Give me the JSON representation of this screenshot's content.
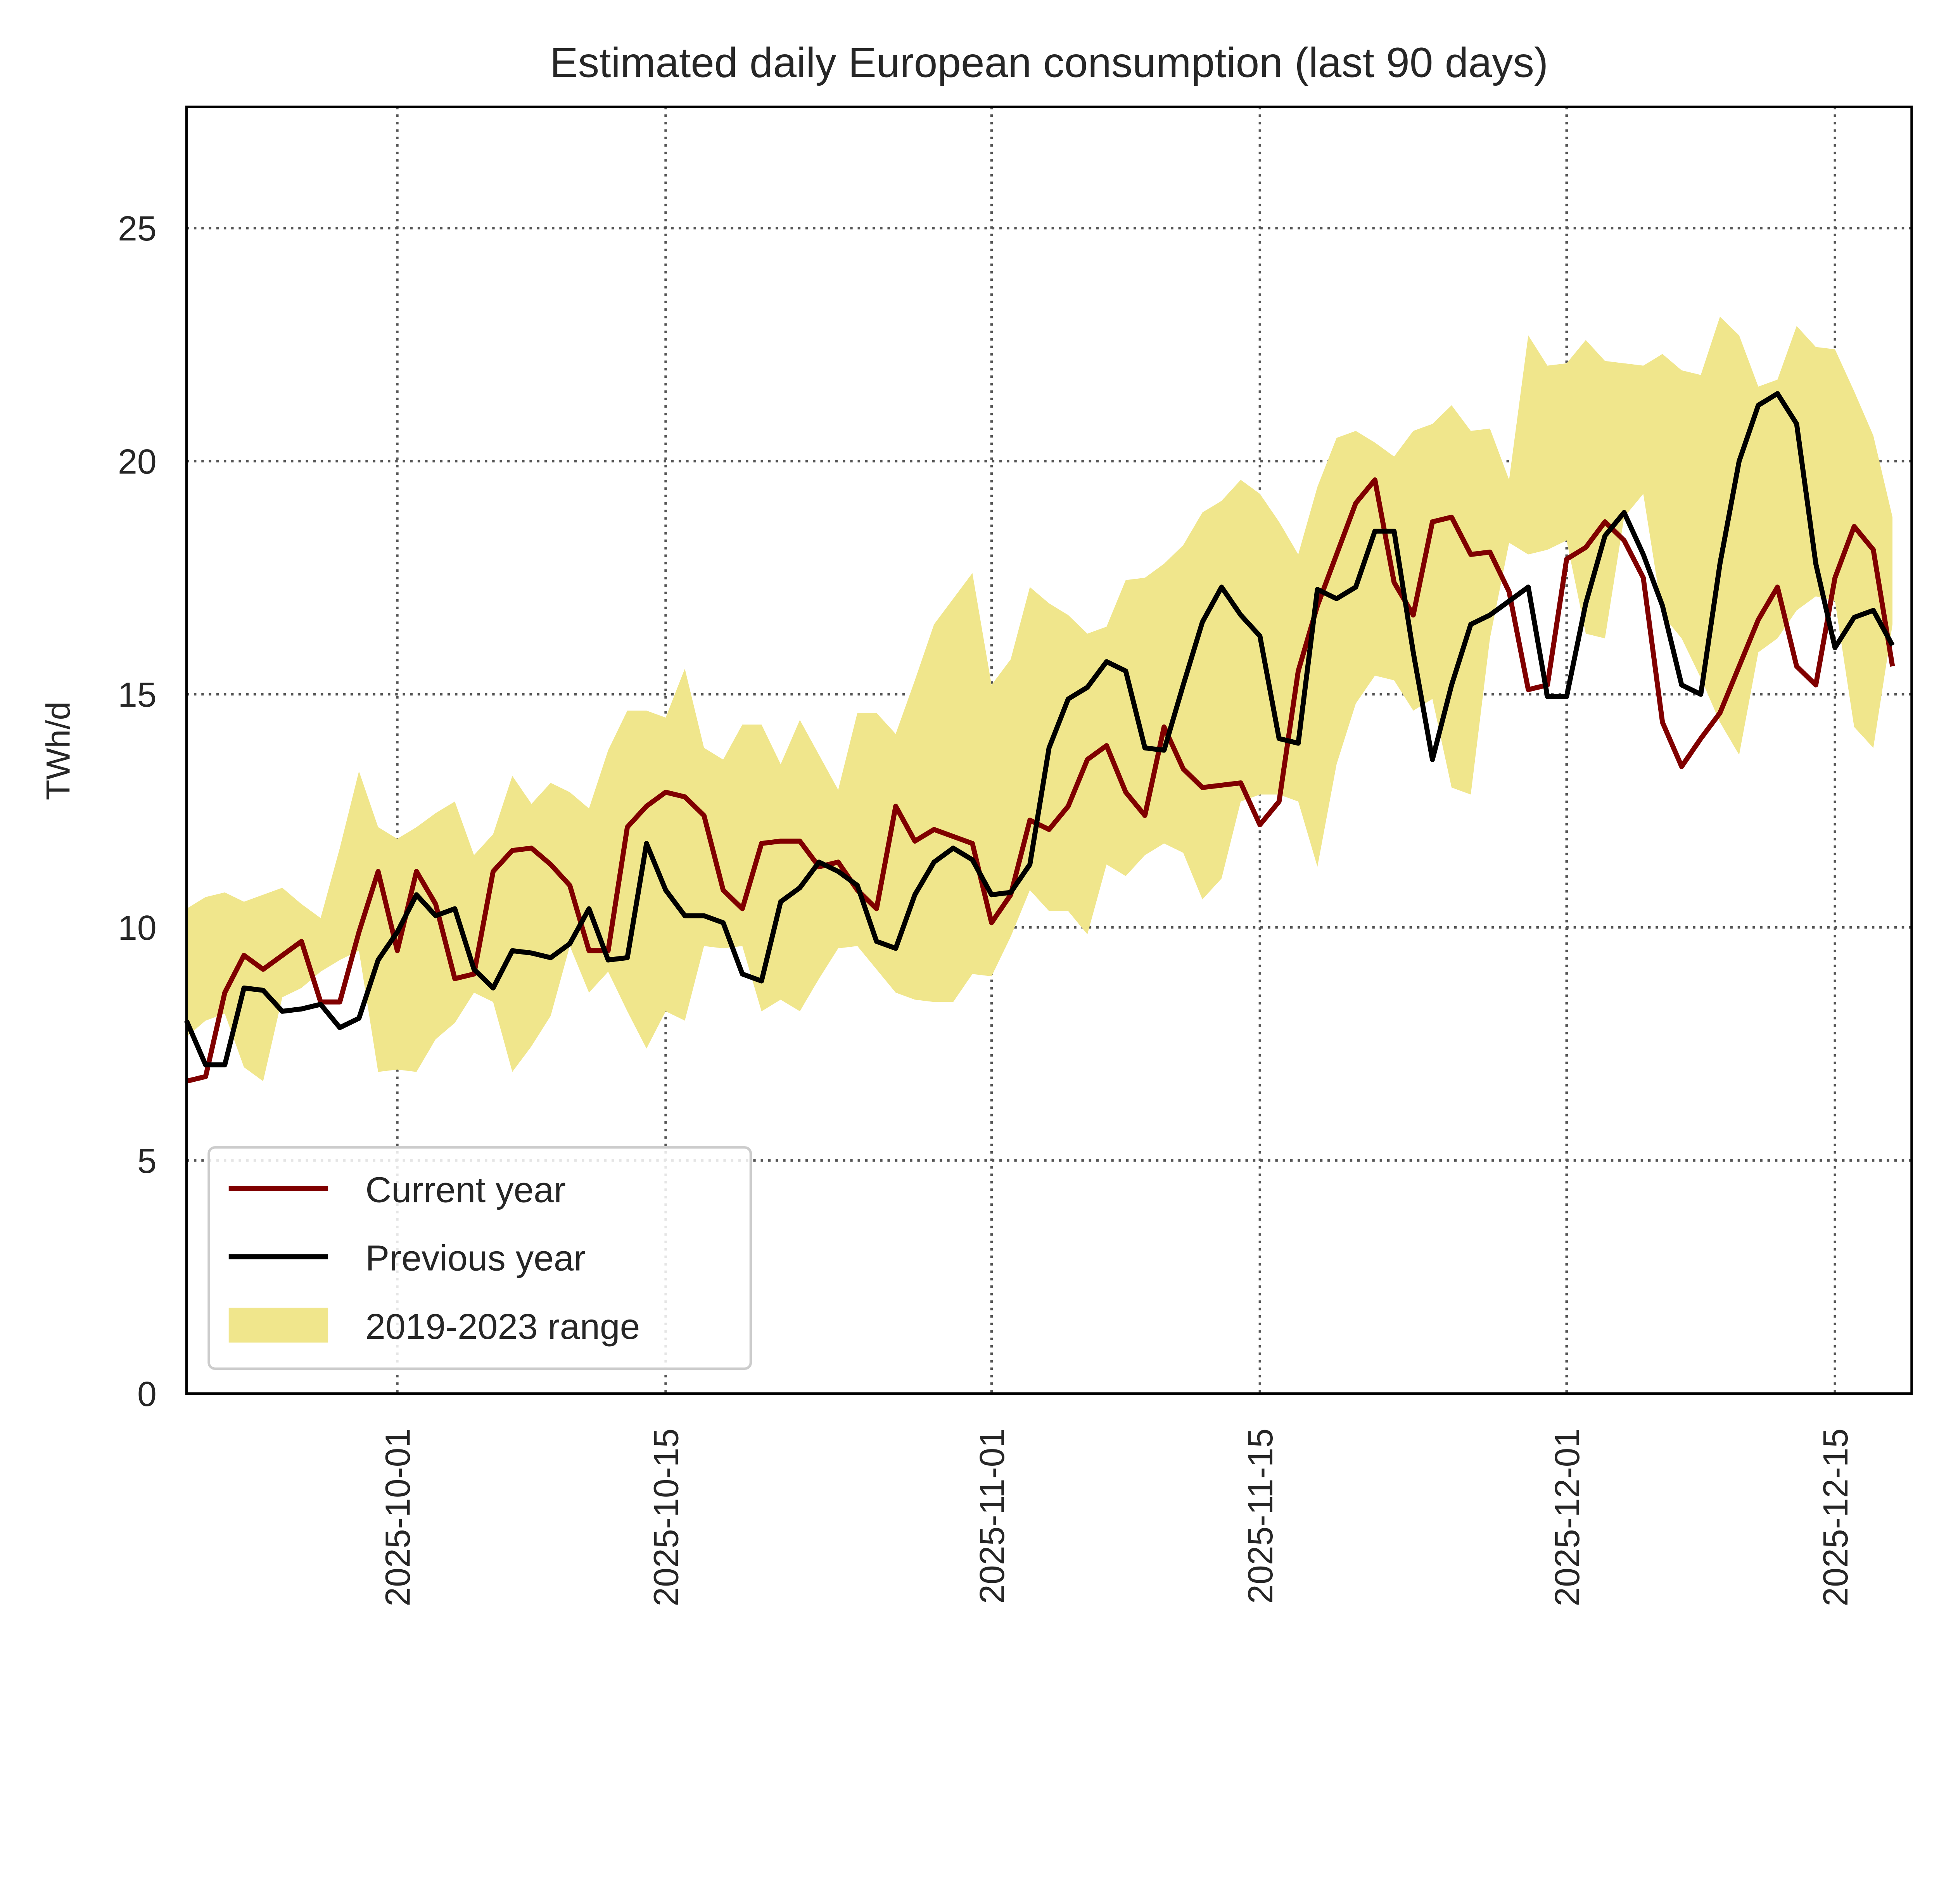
{
  "chart_data": {
    "type": "line",
    "title": "Estimated daily European consumption (last 90 days)",
    "xlabel": "",
    "ylabel": "TWh/d",
    "xlim": [
      "2025-09-20",
      "2025-12-19"
    ],
    "ylim": [
      0,
      27.6
    ],
    "yticks": [
      0,
      5,
      10,
      15,
      20,
      25
    ],
    "xticks": [
      "2025-10-01",
      "2025-10-15",
      "2025-11-01",
      "2025-11-15",
      "2025-12-01",
      "2025-12-15"
    ],
    "grid": true,
    "legend_position": "lower-left",
    "x": [
      "2025-09-20",
      "2025-09-21",
      "2025-09-22",
      "2025-09-23",
      "2025-09-24",
      "2025-09-25",
      "2025-09-26",
      "2025-09-27",
      "2025-09-28",
      "2025-09-29",
      "2025-09-30",
      "2025-10-01",
      "2025-10-02",
      "2025-10-03",
      "2025-10-04",
      "2025-10-05",
      "2025-10-06",
      "2025-10-07",
      "2025-10-08",
      "2025-10-09",
      "2025-10-10",
      "2025-10-11",
      "2025-10-12",
      "2025-10-13",
      "2025-10-14",
      "2025-10-15",
      "2025-10-16",
      "2025-10-17",
      "2025-10-18",
      "2025-10-19",
      "2025-10-20",
      "2025-10-21",
      "2025-10-22",
      "2025-10-23",
      "2025-10-24",
      "2025-10-25",
      "2025-10-26",
      "2025-10-27",
      "2025-10-28",
      "2025-10-29",
      "2025-10-30",
      "2025-10-31",
      "2025-11-01",
      "2025-11-02",
      "2025-11-03",
      "2025-11-04",
      "2025-11-05",
      "2025-11-06",
      "2025-11-07",
      "2025-11-08",
      "2025-11-09",
      "2025-11-10",
      "2025-11-11",
      "2025-11-12",
      "2025-11-13",
      "2025-11-14",
      "2025-11-15",
      "2025-11-16",
      "2025-11-17",
      "2025-11-18",
      "2025-11-19",
      "2025-11-20",
      "2025-11-21",
      "2025-11-22",
      "2025-11-23",
      "2025-11-24",
      "2025-11-25",
      "2025-11-26",
      "2025-11-27",
      "2025-11-28",
      "2025-11-29",
      "2025-11-30",
      "2025-12-01",
      "2025-12-02",
      "2025-12-03",
      "2025-12-04",
      "2025-12-05",
      "2025-12-06",
      "2025-12-07",
      "2025-12-08",
      "2025-12-09",
      "2025-12-10",
      "2025-12-11",
      "2025-12-12",
      "2025-12-13",
      "2025-12-14",
      "2025-12-15",
      "2025-12-16",
      "2025-12-17",
      "2025-12-18"
    ],
    "range_band": {
      "name": "2019-2023 range",
      "color": "#F0E68C",
      "upper": [
        10.4,
        10.65,
        10.75,
        10.55,
        10.7,
        10.85,
        10.5,
        10.2,
        11.7,
        13.35,
        12.15,
        11.9,
        12.15,
        12.45,
        12.7,
        11.55,
        12.0,
        13.25,
        12.65,
        13.1,
        12.9,
        12.55,
        13.8,
        14.65,
        14.65,
        14.5,
        15.55,
        13.85,
        13.6,
        14.35,
        14.35,
        13.5,
        14.45,
        13.7,
        12.95,
        14.6,
        14.6,
        14.15,
        15.3,
        16.5,
        17.05,
        17.6,
        15.2,
        15.75,
        17.3,
        16.95,
        16.7,
        16.3,
        16.45,
        17.45,
        17.5,
        17.8,
        18.2,
        18.9,
        19.15,
        19.6,
        19.3,
        18.7,
        18.0,
        19.45,
        20.5,
        20.65,
        20.4,
        20.1,
        20.65,
        20.8,
        21.2,
        20.65,
        20.7,
        19.6,
        22.7,
        22.05,
        22.1,
        22.6,
        22.15,
        22.1,
        22.05,
        22.3,
        21.95,
        21.85,
        23.1,
        22.7,
        21.6,
        21.75,
        22.9,
        22.45,
        22.4,
        21.5,
        20.55,
        18.8
      ],
      "lower": [
        7.65,
        8.0,
        8.15,
        7.0,
        6.7,
        8.5,
        8.7,
        9.05,
        9.3,
        9.5,
        6.9,
        6.95,
        6.9,
        7.6,
        7.95,
        8.6,
        8.4,
        6.9,
        7.45,
        8.1,
        9.6,
        8.6,
        9.05,
        8.2,
        7.4,
        8.2,
        8.0,
        9.6,
        9.55,
        9.6,
        8.2,
        8.45,
        8.2,
        8.9,
        9.55,
        9.6,
        9.1,
        8.6,
        8.45,
        8.4,
        8.4,
        9.0,
        8.95,
        9.8,
        10.8,
        10.35,
        10.35,
        9.85,
        11.35,
        11.1,
        11.55,
        11.8,
        11.6,
        10.6,
        11.05,
        12.7,
        12.85,
        12.85,
        12.7,
        11.3,
        13.5,
        14.8,
        15.4,
        15.3,
        14.65,
        14.9,
        13.0,
        12.85,
        16.2,
        18.25,
        18.0,
        18.1,
        18.3,
        16.3,
        16.2,
        18.8,
        19.3,
        16.7,
        16.2,
        15.35,
        14.4,
        13.7,
        15.9,
        16.2,
        16.8,
        17.1,
        17.0,
        14.3,
        13.85,
        16.5
      ]
    },
    "series": [
      {
        "name": "Current year",
        "color": "#800000",
        "values": [
          6.7,
          6.8,
          8.6,
          9.4,
          9.1,
          9.4,
          9.7,
          8.4,
          8.4,
          9.9,
          11.2,
          9.5,
          11.2,
          10.5,
          8.9,
          9.0,
          11.2,
          11.65,
          11.7,
          11.35,
          10.9,
          9.5,
          9.5,
          12.15,
          12.6,
          12.9,
          12.8,
          12.4,
          10.8,
          10.4,
          11.8,
          11.85,
          11.85,
          11.3,
          11.4,
          10.8,
          10.4,
          12.6,
          11.85,
          12.1,
          11.95,
          11.8,
          10.1,
          10.7,
          12.3,
          12.1,
          12.6,
          13.6,
          13.9,
          12.9,
          12.4,
          14.3,
          13.4,
          13.0,
          13.05,
          13.1,
          12.2,
          12.7,
          15.5,
          16.9,
          18.0,
          19.1,
          19.6,
          17.4,
          16.7,
          18.7,
          18.8,
          18.0,
          18.05,
          17.2,
          15.1,
          15.2,
          17.9,
          18.15,
          18.7,
          18.3,
          17.5,
          14.4,
          13.45,
          14.05,
          14.6,
          15.6,
          16.6,
          17.3,
          15.6,
          15.2,
          17.5,
          18.6,
          18.1,
          15.6
        ]
      },
      {
        "name": "Previous year",
        "color": "#000000",
        "values": [
          8.0,
          7.05,
          7.05,
          8.7,
          8.65,
          8.2,
          8.25,
          8.35,
          7.85,
          8.05,
          9.3,
          9.9,
          10.7,
          10.25,
          10.4,
          9.1,
          8.7,
          9.5,
          9.45,
          9.35,
          9.65,
          10.4,
          9.3,
          9.35,
          11.8,
          10.8,
          10.25,
          10.25,
          10.1,
          9.0,
          8.85,
          10.55,
          10.85,
          11.4,
          11.2,
          10.9,
          9.7,
          9.55,
          10.7,
          11.4,
          11.7,
          11.45,
          10.7,
          10.75,
          11.35,
          13.85,
          14.9,
          15.15,
          15.7,
          15.5,
          13.85,
          13.8,
          15.2,
          16.55,
          17.3,
          16.7,
          16.25,
          14.05,
          13.95,
          17.25,
          17.05,
          17.3,
          18.5,
          18.5,
          15.9,
          13.6,
          15.2,
          16.5,
          16.7,
          17.0,
          17.3,
          14.95,
          14.95,
          16.95,
          18.4,
          18.9,
          18.0,
          16.9,
          15.2,
          15.0,
          17.8,
          20.0,
          21.2,
          21.45,
          20.8,
          17.8,
          16.0,
          16.65,
          16.8,
          16.05
        ]
      }
    ]
  }
}
